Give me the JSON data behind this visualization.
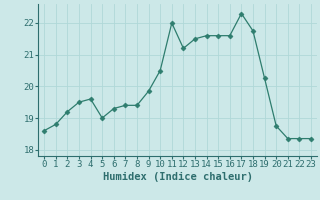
{
  "x": [
    0,
    1,
    2,
    3,
    4,
    5,
    6,
    7,
    8,
    9,
    10,
    11,
    12,
    13,
    14,
    15,
    16,
    17,
    18,
    19,
    20,
    21,
    22,
    23
  ],
  "y": [
    18.6,
    18.8,
    19.2,
    19.5,
    19.6,
    19.0,
    19.3,
    19.4,
    19.4,
    19.85,
    20.5,
    22.0,
    21.2,
    21.5,
    21.6,
    21.6,
    21.6,
    22.3,
    21.75,
    20.25,
    18.75,
    18.35,
    18.35,
    18.35
  ],
  "line_color": "#2e7d6e",
  "marker": "D",
  "marker_size": 2.5,
  "bg_color": "#cce8e8",
  "grid_color": "#b0d8d8",
  "xlabel": "Humidex (Indice chaleur)",
  "ylim": [
    17.8,
    22.6
  ],
  "xlim": [
    -0.5,
    23.5
  ],
  "yticks": [
    18,
    19,
    20,
    21,
    22
  ],
  "xticks": [
    0,
    1,
    2,
    3,
    4,
    5,
    6,
    7,
    8,
    9,
    10,
    11,
    12,
    13,
    14,
    15,
    16,
    17,
    18,
    19,
    20,
    21,
    22,
    23
  ],
  "tick_fontsize": 6.5,
  "xlabel_fontsize": 7.5,
  "spine_color": "#2e6e6e",
  "tick_color": "#2e6e6e"
}
